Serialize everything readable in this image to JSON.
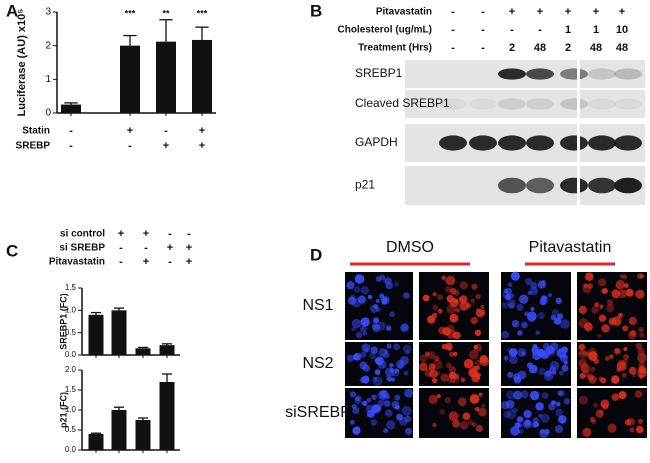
{
  "panel_labels": [
    "A",
    "B",
    "C",
    "D"
  ],
  "chart_data": [
    {
      "type": "bar",
      "y_label": "Luciferase (AU) x10⁵",
      "ylim": [
        0,
        3
      ],
      "yticks": [
        0,
        1,
        2,
        3
      ],
      "values": [
        0.25,
        2.0,
        2.12,
        2.17
      ],
      "errors": [
        0.05,
        0.3,
        0.65,
        0.38
      ],
      "color": "#111111",
      "significance": [
        null,
        "***",
        "**",
        "***"
      ],
      "conditions": [
        {
          "name": "Statin",
          "marks": [
            "-",
            "+",
            "-",
            "+"
          ]
        },
        {
          "name": "SREBP",
          "marks": [
            "-",
            "-",
            "+",
            "+"
          ]
        }
      ]
    },
    {
      "type": "bar",
      "y_label": "SREBP1 (FC)",
      "ylim": [
        0,
        1.5
      ],
      "yticks": [
        {
          "value": 0,
          "label": "0.0"
        },
        0.5,
        {
          "value": 1,
          "label": "1.0"
        },
        1.5
      ],
      "values": [
        0.9,
        1.0,
        0.15,
        0.22
      ],
      "errors": [
        0.05,
        0.05,
        0.02,
        0.03
      ],
      "color": "#111111",
      "conditions": [
        {
          "name": "si control",
          "marks": [
            "+",
            "+",
            "-",
            "-"
          ]
        },
        {
          "name": "si SREBP",
          "marks": [
            "-",
            "-",
            "+",
            "+"
          ]
        },
        {
          "name": "Pitavastatin",
          "marks": [
            "-",
            "+",
            "-",
            "+"
          ]
        }
      ]
    },
    {
      "type": "bar",
      "y_label": "p21 (FC)",
      "ylim": [
        0,
        2
      ],
      "yticks": [
        {
          "value": 0,
          "label": "0.0"
        },
        0.5,
        {
          "value": 1,
          "label": "1.0"
        },
        1.5,
        {
          "value": 2,
          "label": "2.0"
        }
      ],
      "values": [
        0.4,
        1.0,
        0.75,
        1.7
      ],
      "errors": [
        0.02,
        0.07,
        0.05,
        0.2
      ],
      "color": "#111111"
    }
  ],
  "blot": {
    "conditions": [
      {
        "name": "Pitavastatin",
        "marks": [
          "-",
          "-",
          "+",
          "+",
          "+",
          "+",
          "+"
        ]
      },
      {
        "name": "Cholesterol (ug/mL)",
        "marks": [
          "-",
          "-",
          "-",
          "-",
          "1",
          "1",
          "10"
        ]
      },
      {
        "name": "Treatment (Hrs)",
        "marks": [
          "-",
          "-",
          "2",
          "48",
          "2",
          "48",
          "48"
        ]
      }
    ],
    "proteins": [
      "SREBP1",
      "Cleaved SREBP1",
      "GAPDH",
      "p21"
    ]
  },
  "microscopy": {
    "columns": [
      "DMSO",
      "Pitavastatin"
    ],
    "rows": [
      "NS1",
      "NS2",
      "siSREBP"
    ]
  }
}
